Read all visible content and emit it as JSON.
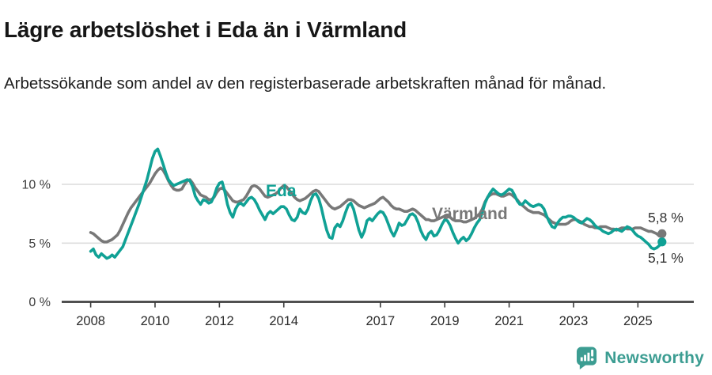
{
  "header": {
    "title": "Lägre arbetslöshet i Eda än i Värmland",
    "subtitle": "Arbetssökande som andel av den registerbaserade arbetskraften månad för månad."
  },
  "chart_data": {
    "type": "line",
    "title": "Lägre arbetslöshet i Eda än i Värmland",
    "subtitle": "Arbetssökande som andel av den registerbaserade arbetskraften månad för månad.",
    "x_unit": "month",
    "x_start": "2008-01",
    "x_end": "2025-10",
    "points_per_year": 12,
    "x_tick_years": [
      2008,
      2010,
      2012,
      2014,
      2017,
      2019,
      2021,
      2023,
      2025
    ],
    "x_tick_labels": [
      "2008",
      "2010",
      "2012",
      "2014",
      "2017",
      "2019",
      "2021",
      "2023",
      "2025"
    ],
    "y_ticks": [
      {
        "value": 0,
        "label": "0 %"
      },
      {
        "value": 5,
        "label": "5 %"
      },
      {
        "value": 10,
        "label": "10 %"
      }
    ],
    "ylim": [
      0,
      14.3
    ],
    "grid": true,
    "legend_position": "inline-labels",
    "series": [
      {
        "name": "Värmland",
        "color": "#787878",
        "end_label": "5,8 %",
        "last_value": 5.8,
        "values": [
          5.9,
          5.8,
          5.6,
          5.4,
          5.2,
          5.1,
          5.1,
          5.2,
          5.3,
          5.5,
          5.7,
          6.1,
          6.6,
          7.1,
          7.6,
          8.0,
          8.3,
          8.6,
          8.9,
          9.2,
          9.5,
          9.8,
          10.1,
          10.5,
          10.9,
          11.2,
          11.4,
          11.2,
          10.8,
          10.3,
          9.9,
          9.6,
          9.5,
          9.5,
          9.6,
          10.0,
          10.3,
          10.4,
          10.1,
          9.7,
          9.4,
          9.1,
          9.0,
          8.9,
          8.7,
          8.7,
          8.9,
          9.3,
          9.6,
          9.7,
          9.5,
          9.2,
          8.9,
          8.6,
          8.5,
          8.5,
          8.6,
          8.7,
          9.0,
          9.4,
          9.8,
          9.9,
          9.8,
          9.6,
          9.3,
          9.0,
          8.9,
          9.0,
          9.1,
          9.2,
          9.4,
          9.7,
          9.9,
          9.8,
          9.5,
          9.2,
          8.9,
          8.7,
          8.6,
          8.7,
          8.8,
          9.0,
          9.2,
          9.4,
          9.5,
          9.4,
          9.1,
          8.8,
          8.5,
          8.2,
          8.0,
          7.9,
          8.0,
          8.1,
          8.3,
          8.5,
          8.7,
          8.7,
          8.6,
          8.4,
          8.2,
          8.1,
          8.0,
          8.1,
          8.2,
          8.3,
          8.4,
          8.6,
          8.8,
          8.9,
          8.7,
          8.5,
          8.2,
          8.0,
          7.9,
          7.9,
          7.8,
          7.7,
          7.7,
          7.8,
          7.9,
          7.8,
          7.6,
          7.4,
          7.2,
          7.0,
          7.0,
          6.9,
          6.9,
          7.0,
          7.1,
          7.2,
          7.3,
          7.3,
          7.2,
          7.0,
          6.9,
          6.9,
          6.9,
          6.8,
          6.8,
          6.9,
          7.0,
          7.1,
          7.3,
          7.5,
          7.9,
          8.5,
          8.9,
          9.1,
          9.2,
          9.2,
          9.1,
          9.0,
          9.0,
          9.1,
          9.2,
          9.1,
          8.9,
          8.7,
          8.4,
          8.2,
          8.0,
          7.8,
          7.7,
          7.6,
          7.6,
          7.6,
          7.5,
          7.4,
          7.2,
          7.0,
          6.8,
          6.7,
          6.6,
          6.6,
          6.6,
          6.6,
          6.7,
          6.9,
          7.0,
          7.0,
          6.9,
          6.8,
          6.6,
          6.5,
          6.4,
          6.4,
          6.3,
          6.3,
          6.4,
          6.4,
          6.4,
          6.3,
          6.2,
          6.2,
          6.1,
          6.2,
          6.3,
          6.3,
          6.2,
          6.2,
          6.2,
          6.3,
          6.3,
          6.3,
          6.2,
          6.1,
          6.0,
          6.0,
          5.9,
          5.8,
          5.6,
          5.8
        ]
      },
      {
        "name": "Eda",
        "color": "#10A195",
        "end_label": "5,1 %",
        "last_value": 5.1,
        "values": [
          4.3,
          4.5,
          4.0,
          3.8,
          4.1,
          3.9,
          3.7,
          3.8,
          4.0,
          3.8,
          4.1,
          4.4,
          4.7,
          5.3,
          5.9,
          6.5,
          7.1,
          7.7,
          8.3,
          9.0,
          9.7,
          10.4,
          11.3,
          12.2,
          12.8,
          13.0,
          12.4,
          11.7,
          11.0,
          10.4,
          10.1,
          9.9,
          10.0,
          10.1,
          10.2,
          10.3,
          10.4,
          10.3,
          9.8,
          9.0,
          8.6,
          8.3,
          8.7,
          8.6,
          8.4,
          8.5,
          9.0,
          9.7,
          10.1,
          10.2,
          9.4,
          8.3,
          7.6,
          7.2,
          7.9,
          8.3,
          8.4,
          8.2,
          8.5,
          8.8,
          8.9,
          8.7,
          8.3,
          7.8,
          7.4,
          7.0,
          7.5,
          7.7,
          7.5,
          7.7,
          7.9,
          8.1,
          8.1,
          7.9,
          7.4,
          7.0,
          6.9,
          7.2,
          7.9,
          7.6,
          7.5,
          7.9,
          8.6,
          9.1,
          9.2,
          8.8,
          8.0,
          7.0,
          6.1,
          5.5,
          5.4,
          6.3,
          6.6,
          6.4,
          6.9,
          7.6,
          8.2,
          8.4,
          7.9,
          7.0,
          6.1,
          5.5,
          6.0,
          6.9,
          7.1,
          6.9,
          7.2,
          7.5,
          7.7,
          7.6,
          7.2,
          6.6,
          6.0,
          5.6,
          6.1,
          6.7,
          6.5,
          6.6,
          7.0,
          7.4,
          7.5,
          7.3,
          6.8,
          6.1,
          5.6,
          5.3,
          5.8,
          6.0,
          5.6,
          5.7,
          6.1,
          6.6,
          7.0,
          6.9,
          6.5,
          5.9,
          5.4,
          5.0,
          5.3,
          5.5,
          5.2,
          5.4,
          5.8,
          6.3,
          6.7,
          7.0,
          7.6,
          8.4,
          8.9,
          9.3,
          9.6,
          9.4,
          9.2,
          9.1,
          9.2,
          9.4,
          9.6,
          9.5,
          9.1,
          8.6,
          8.3,
          8.3,
          8.6,
          8.4,
          8.2,
          8.1,
          8.2,
          8.3,
          8.2,
          7.9,
          7.3,
          6.8,
          6.4,
          6.3,
          6.7,
          7.0,
          7.2,
          7.2,
          7.3,
          7.3,
          7.2,
          7.0,
          6.8,
          6.7,
          6.9,
          7.1,
          7.0,
          6.8,
          6.5,
          6.3,
          6.2,
          6.0,
          5.9,
          5.8,
          5.9,
          6.1,
          6.2,
          6.1,
          6.0,
          6.2,
          6.4,
          6.3,
          6.1,
          5.8,
          5.6,
          5.5,
          5.3,
          5.1,
          4.9,
          4.6,
          4.5,
          4.6,
          4.8,
          5.1
        ]
      }
    ]
  },
  "colors": {
    "eda_line": "#10A195",
    "varmland_line": "#787878",
    "gridline": "#dcdcdc",
    "axis": "#3c3c3c",
    "logo_teal": "#3C9D92"
  },
  "footer": {
    "brand": "Newsworthy"
  }
}
